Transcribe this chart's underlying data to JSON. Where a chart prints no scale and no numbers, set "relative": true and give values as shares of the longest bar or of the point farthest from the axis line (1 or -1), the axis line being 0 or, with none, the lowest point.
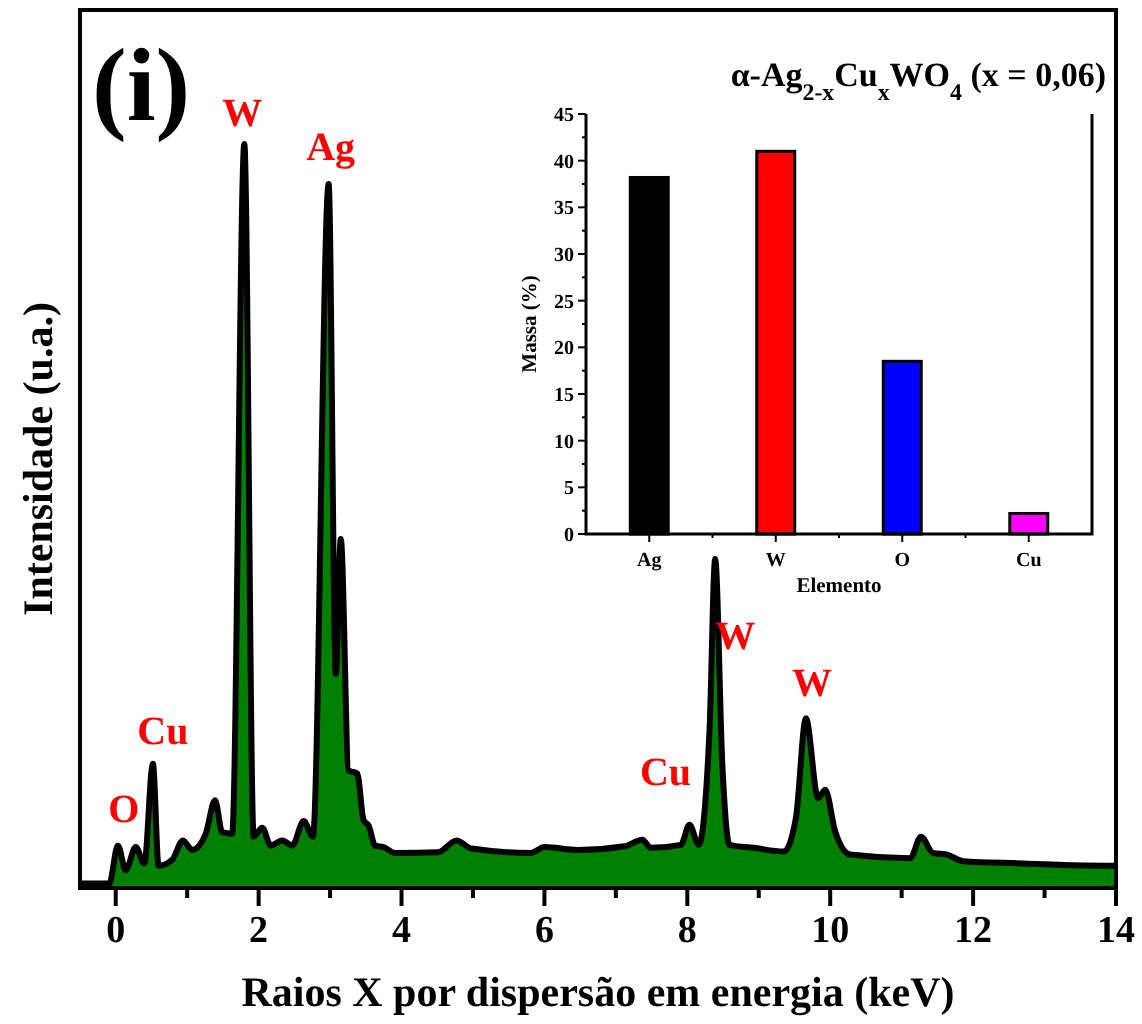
{
  "chart_data": [
    {
      "type": "area",
      "relative": true,
      "xlabel": "Raios X por dispersão em energia (keV)",
      "ylabel": "Intensidade (u.a.)",
      "xlim": [
        -0.5,
        14
      ],
      "xticks": [
        0,
        {
          "value": 1,
          "label": null
        },
        2,
        {
          "value": 3,
          "label": null
        },
        4,
        {
          "value": 5,
          "label": null
        },
        6,
        {
          "value": 7,
          "label": null
        },
        8,
        {
          "value": 9,
          "label": null
        },
        10,
        {
          "value": 11,
          "label": null
        },
        12,
        {
          "value": 13,
          "label": null
        },
        14
      ],
      "marker": "none",
      "line_style": "solid",
      "grid": false,
      "series": [
        {
          "color": "#008000",
          "x": [
            -0.5,
            -0.09,
            0.03,
            0.14,
            0.28,
            0.4,
            0.52,
            0.6,
            0.79,
            0.94,
            1.07,
            1.26,
            1.39,
            1.49,
            1.63,
            1.8,
            1.93,
            2.05,
            2.17,
            2.33,
            2.47,
            2.63,
            2.76,
            2.98,
            3.08,
            3.15,
            3.26,
            3.38,
            3.47,
            3.54,
            3.63,
            3.75,
            3.91,
            4.51,
            4.77,
            4.98,
            5.81,
            6.0,
            6.47,
            7.12,
            7.37,
            7.49,
            7.91,
            8.03,
            8.16,
            8.31,
            8.39,
            8.49,
            8.59,
            8.93,
            9.35,
            9.52,
            9.66,
            9.83,
            9.93,
            10.07,
            10.28,
            11.12,
            11.27,
            11.44,
            11.63,
            11.86,
            12.7,
            13.26,
            13.98
          ],
          "values": [
            0.006,
            0.006,
            0.057,
            0.024,
            0.055,
            0.033,
            0.167,
            0.03,
            0.038,
            0.064,
            0.051,
            0.073,
            0.118,
            0.075,
            0.073,
            1.0,
            0.069,
            0.081,
            0.057,
            0.064,
            0.057,
            0.09,
            0.069,
            0.946,
            0.288,
            0.469,
            0.158,
            0.154,
            0.091,
            0.084,
            0.057,
            0.055,
            0.047,
            0.048,
            0.064,
            0.053,
            0.047,
            0.055,
            0.051,
            0.056,
            0.065,
            0.054,
            0.058,
            0.085,
            0.058,
            0.21,
            0.442,
            0.166,
            0.058,
            0.054,
            0.049,
            0.094,
            0.228,
            0.121,
            0.132,
            0.076,
            0.045,
            0.04,
            0.069,
            0.047,
            0.045,
            0.036,
            0.033,
            0.031,
            0.03
          ]
        }
      ],
      "annotations": [
        "(i)",
        {
          "text": "O",
          "x": 0.03,
          "y": 0.057
        },
        {
          "text": "Cu",
          "x": 0.52,
          "y": 0.167
        },
        {
          "text": "W",
          "x": 1.8,
          "y": 1.0
        },
        {
          "text": "Ag",
          "x": 2.98,
          "y": 0.946
        },
        {
          "text": "Cu",
          "x": 8.03,
          "y": 0.085
        },
        {
          "text": "W",
          "x": 8.39,
          "y": 0.442
        },
        {
          "text": "W",
          "x": 9.66,
          "y": 0.228
        }
      ]
    },
    {
      "type": "bar",
      "title": "α-Ag$_{2-x}$Cu$_{x}$WO$_{4}$ (x = 0,06)",
      "xlabel": "Elemento",
      "ylabel": "Massa (%)",
      "categories": [
        "Ag",
        "W",
        "O",
        "Cu"
      ],
      "values": [
        38.2,
        41.0,
        18.5,
        2.2
      ],
      "colors": [
        "#000000",
        "#ff0000",
        "#0000ff",
        "#ff00ff"
      ],
      "ylim": [
        0,
        45
      ],
      "yticks": [
        0,
        {
          "value": 2.5,
          "label": null
        },
        5,
        {
          "value": 7.5,
          "label": null
        },
        10,
        {
          "value": 12.5,
          "label": null
        },
        15,
        {
          "value": 17.5,
          "label": null
        },
        20,
        {
          "value": 22.5,
          "label": null
        },
        25,
        {
          "value": 27.5,
          "label": null
        },
        30,
        {
          "value": 32.5,
          "label": null
        },
        35,
        {
          "value": 37.5,
          "label": null
        },
        40,
        {
          "value": 42.5,
          "label": null
        },
        45
      ],
      "grid": false
    }
  ]
}
